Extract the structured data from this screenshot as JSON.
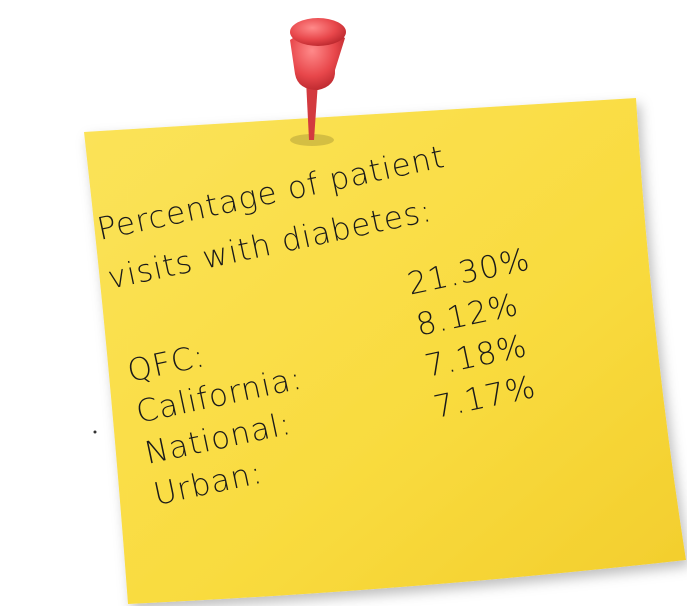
{
  "note": {
    "title_lines": [
      "Percentage of patient",
      "visits with diabetes:"
    ],
    "rows": [
      {
        "label": "QFC:",
        "value": "21.30%"
      },
      {
        "label": "California:",
        "value": "8.12%"
      },
      {
        "label": "National:",
        "value": "7.18%"
      },
      {
        "label": "Urban:",
        "value": "7.17%"
      }
    ]
  }
}
